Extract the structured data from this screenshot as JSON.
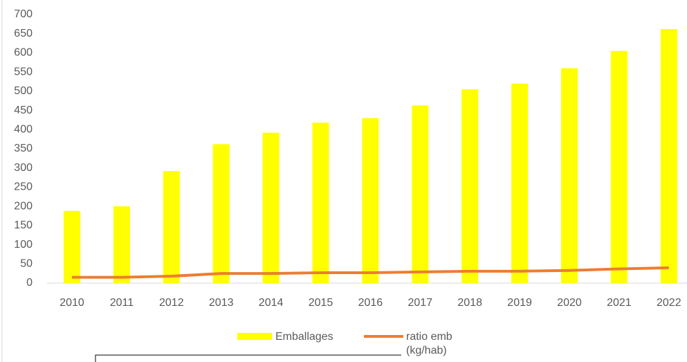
{
  "chart_data": {
    "type": "bar_line",
    "categories": [
      "2010",
      "2011",
      "2012",
      "2013",
      "2014",
      "2015",
      "2016",
      "2017",
      "2018",
      "2019",
      "2020",
      "2021",
      "2022"
    ],
    "series": [
      {
        "name": "Emballages",
        "type": "bar",
        "color": "#ffff00",
        "values": [
          188,
          200,
          292,
          362,
          392,
          418,
          430,
          463,
          505,
          520,
          560,
          605,
          662
        ]
      },
      {
        "name": "ratio emb (kg/hab)",
        "type": "line",
        "color": "#ed7d31",
        "values": [
          15,
          15,
          18,
          25,
          25,
          27,
          27,
          29,
          31,
          31,
          33,
          37,
          40
        ]
      }
    ],
    "ylim": [
      0,
      700
    ],
    "yticks": [
      0,
      50,
      100,
      150,
      200,
      250,
      300,
      350,
      400,
      450,
      500,
      550,
      600,
      650,
      700
    ],
    "grid": false
  }
}
